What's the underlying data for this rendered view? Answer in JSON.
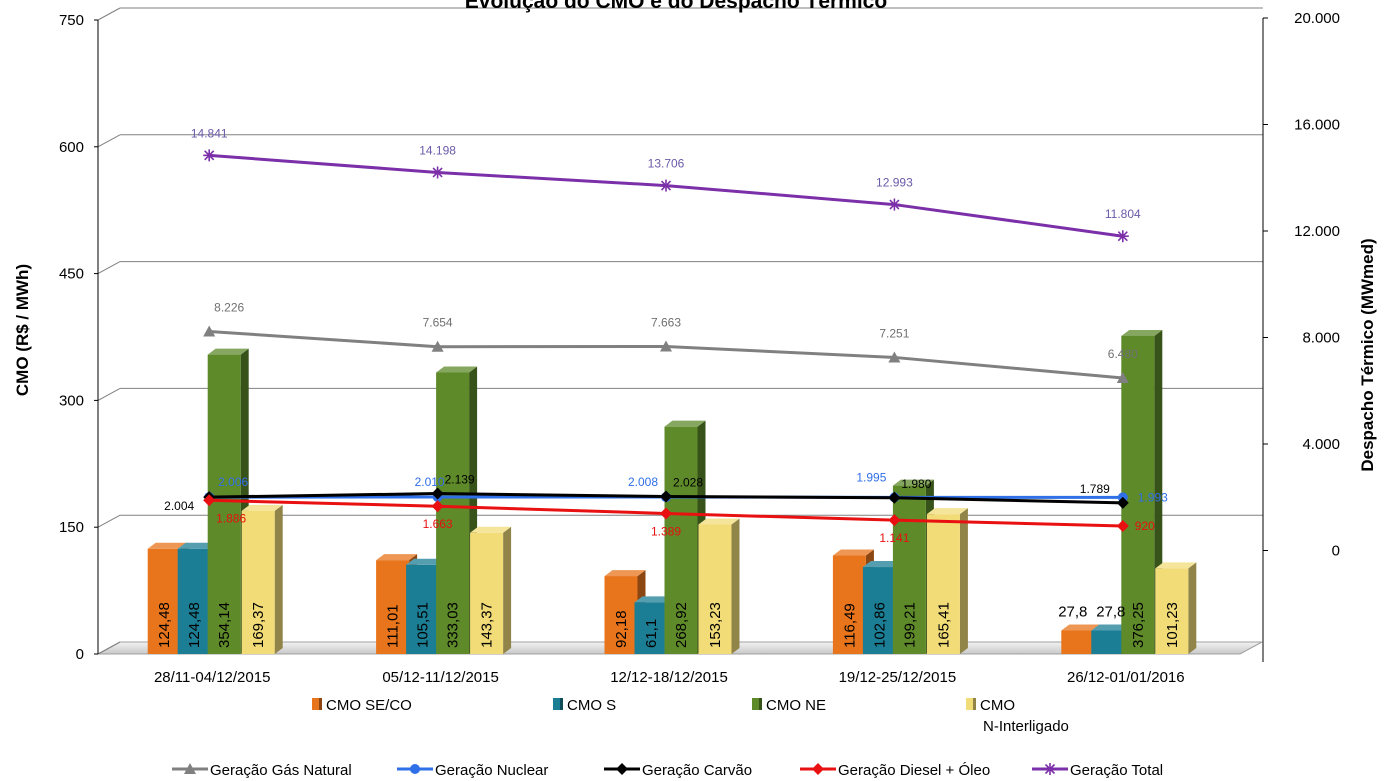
{
  "chart_data": {
    "type": "bar",
    "title": "Evolução do CMO e do Despacho Térmico",
    "ylabel": "CMO (R$ / MWh)",
    "y2label": "Despacho Térmico (MWmed)",
    "ylim": [
      0,
      750
    ],
    "yticks": [
      "0",
      "150",
      "300",
      "450",
      "600",
      "750"
    ],
    "y2lim": [
      -4000,
      20000
    ],
    "y2ticks": [
      "0",
      "4.000",
      "8.000",
      "12.000",
      "16.000",
      "20.000"
    ],
    "categories": [
      "28/11-04/12/2015",
      "05/12-11/12/2015",
      "12/12-18/12/2015",
      "19/12-25/12/2015",
      "26/12-01/01/2016"
    ],
    "bar_series": [
      {
        "name": "CMO SE/CO",
        "color": "#E8741C",
        "values": [
          124.48,
          111.01,
          92.18,
          116.49,
          27.8
        ],
        "labels": [
          "124,48",
          "111,01",
          "92,18",
          "116,49",
          "27,8"
        ]
      },
      {
        "name": "CMO S",
        "color": "#1C7E94",
        "values": [
          124.48,
          105.51,
          61.1,
          102.86,
          27.8
        ],
        "labels": [
          "124,48",
          "105,51",
          "61,1",
          "102,86",
          "27,8"
        ]
      },
      {
        "name": "CMO NE",
        "color": "#5E8A2A",
        "values": [
          354.14,
          333.03,
          268.92,
          199.21,
          376.25
        ],
        "labels": [
          "354,14",
          "333,03",
          "268,92",
          "199,21",
          "376,25"
        ]
      },
      {
        "name": "CMO N-Interligado",
        "legend_lines": [
          "CMO",
          "N-Interligado"
        ],
        "color": "#F2DC78",
        "values": [
          169.37,
          143.37,
          153.23,
          165.41,
          101.23
        ],
        "labels": [
          "169,37",
          "143,37",
          "153,23",
          "165,41",
          "101,23"
        ]
      }
    ],
    "line_series": [
      {
        "name": "Geração Gás Natural",
        "color": "#808080",
        "marker": "triangle",
        "values": [
          8226,
          7654,
          7663,
          7251,
          6480
        ],
        "labels": [
          "8.226",
          "7.654",
          "7.663",
          "7.251",
          "6.480"
        ]
      },
      {
        "name": "Geração Nuclear",
        "color": "#2F6FE8",
        "marker": "circle",
        "values": [
          2006,
          2010,
          2008,
          1995,
          1993
        ],
        "labels": [
          "2.006",
          "2.010",
          "2.008",
          "1.995",
          "1.993"
        ]
      },
      {
        "name": "Geração Carvão",
        "color": "#000000",
        "marker": "diamond",
        "values": [
          2004,
          2139,
          2028,
          1980,
          1789
        ],
        "labels": [
          "2.004",
          "2.139",
          "2.028",
          "1.980",
          "1.789"
        ]
      },
      {
        "name": "Geração Diesel + Óleo",
        "color": "#E81010",
        "marker": "diamond",
        "values": [
          1886,
          1663,
          1389,
          1141,
          920
        ],
        "labels": [
          "1.886",
          "1.663",
          "1.389",
          "1.141",
          "920"
        ]
      },
      {
        "name": "Geração Total",
        "color": "#7B2FA8",
        "marker": "star",
        "values": [
          14841,
          14198,
          13706,
          12993,
          11804
        ],
        "labels": [
          "14.841",
          "14.198",
          "13.706",
          "12.993",
          "11.804"
        ]
      }
    ],
    "legend_position": "bottom",
    "grid": true
  }
}
